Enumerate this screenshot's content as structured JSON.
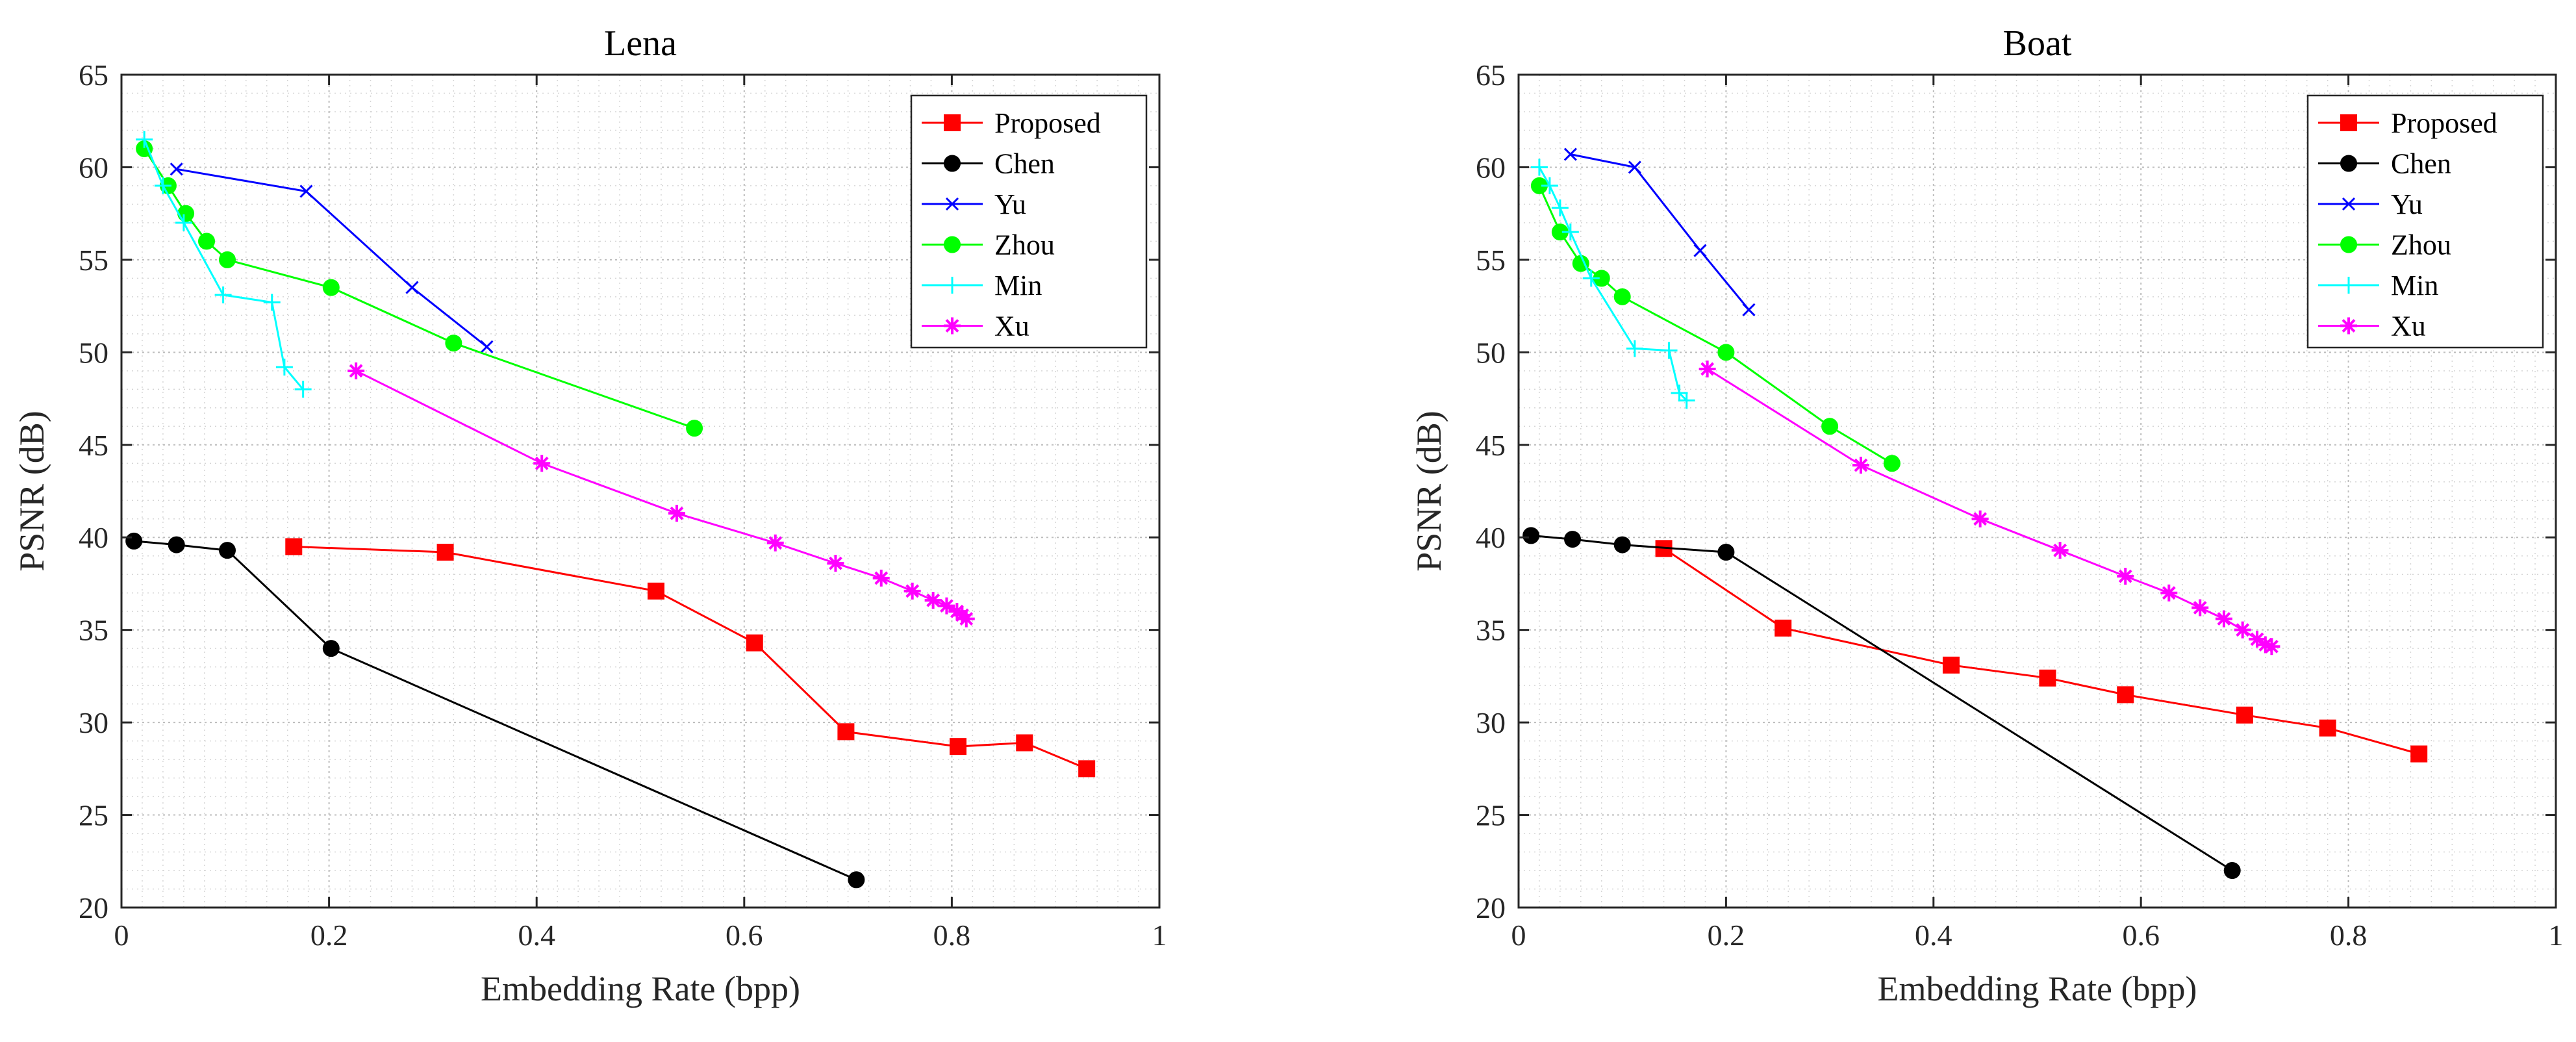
{
  "chart_data": [
    {
      "type": "line",
      "title": "Lena",
      "xlabel": "Embedding Rate (bpp)",
      "ylabel": "PSNR (dB)",
      "xlim": [
        0,
        1
      ],
      "ylim": [
        20,
        65
      ],
      "xticks": [
        "0",
        "0.2",
        "0.4",
        "0.6",
        "0.8",
        "1"
      ],
      "yticks": [
        "20",
        "25",
        "30",
        "35",
        "40",
        "45",
        "50",
        "55",
        "60",
        "65"
      ],
      "grid": true,
      "legend": "top-right",
      "series": [
        {
          "name": "Proposed",
          "color": "#ff0000",
          "marker": "square",
          "x": [
            0.166,
            0.312,
            0.515,
            0.61,
            0.698,
            0.806,
            0.87,
            0.93
          ],
          "y": [
            39.5,
            39.2,
            37.1,
            34.3,
            29.5,
            28.7,
            28.9,
            27.5
          ]
        },
        {
          "name": "Chen",
          "color": "#000000",
          "marker": "circle",
          "x": [
            0.012,
            0.053,
            0.102,
            0.202,
            0.708
          ],
          "y": [
            39.8,
            39.6,
            39.3,
            34.0,
            21.5
          ]
        },
        {
          "name": "Yu",
          "color": "#0000ff",
          "marker": "x",
          "x": [
            0.053,
            0.178,
            0.28,
            0.352
          ],
          "y": [
            59.9,
            58.7,
            53.5,
            50.3
          ]
        },
        {
          "name": "Zhou",
          "color": "#00ff00",
          "marker": "circle",
          "x": [
            0.022,
            0.045,
            0.062,
            0.082,
            0.102,
            0.202,
            0.32,
            0.552
          ],
          "y": [
            61.0,
            59.0,
            57.5,
            56.0,
            55.0,
            53.5,
            50.5,
            45.9
          ]
        },
        {
          "name": "Min",
          "color": "#00ffff",
          "marker": "plus",
          "x": [
            0.022,
            0.04,
            0.06,
            0.098,
            0.145,
            0.157,
            0.175
          ],
          "y": [
            61.5,
            59.0,
            57.0,
            53.1,
            52.7,
            49.2,
            48.0
          ]
        },
        {
          "name": "Xu",
          "color": "#ff00ff",
          "marker": "star",
          "x": [
            0.226,
            0.405,
            0.535,
            0.63,
            0.688,
            0.732,
            0.762,
            0.782,
            0.795,
            0.805,
            0.81,
            0.814
          ],
          "y": [
            49.0,
            44.0,
            41.3,
            39.7,
            38.6,
            37.8,
            37.1,
            36.6,
            36.3,
            36.0,
            35.8,
            35.6
          ]
        }
      ]
    },
    {
      "type": "line",
      "title": "Boat",
      "xlabel": "Embedding Rate (bpp)",
      "ylabel": "PSNR (dB)",
      "xlim": [
        0,
        1
      ],
      "ylim": [
        20,
        65
      ],
      "xticks": [
        "0",
        "0.2",
        "0.4",
        "0.6",
        "0.8",
        "1"
      ],
      "yticks": [
        "20",
        "25",
        "30",
        "35",
        "40",
        "45",
        "50",
        "55",
        "60",
        "65"
      ],
      "grid": true,
      "legend": "top-right",
      "series": [
        {
          "name": "Proposed",
          "color": "#ff0000",
          "marker": "square",
          "x": [
            0.14,
            0.255,
            0.417,
            0.51,
            0.585,
            0.7,
            0.78,
            0.868
          ],
          "y": [
            39.4,
            35.1,
            33.1,
            32.4,
            31.5,
            30.4,
            29.7,
            28.3
          ]
        },
        {
          "name": "Chen",
          "color": "#000000",
          "marker": "circle",
          "x": [
            0.012,
            0.052,
            0.1,
            0.2,
            0.688
          ],
          "y": [
            40.1,
            39.9,
            39.6,
            39.2,
            22.0
          ]
        },
        {
          "name": "Yu",
          "color": "#0000ff",
          "marker": "x",
          "x": [
            0.05,
            0.112,
            0.175,
            0.222
          ],
          "y": [
            60.7,
            60.0,
            55.5,
            52.3
          ]
        },
        {
          "name": "Zhou",
          "color": "#00ff00",
          "marker": "circle",
          "x": [
            0.02,
            0.04,
            0.06,
            0.08,
            0.1,
            0.2,
            0.3,
            0.36
          ],
          "y": [
            59.0,
            56.5,
            54.8,
            54.0,
            53.0,
            50.0,
            46.0,
            44.0
          ]
        },
        {
          "name": "Min",
          "color": "#00ffff",
          "marker": "plus",
          "x": [
            0.02,
            0.03,
            0.04,
            0.05,
            0.07,
            0.112,
            0.145,
            0.155,
            0.162
          ],
          "y": [
            60.0,
            59.0,
            57.8,
            56.5,
            54.0,
            50.2,
            50.1,
            47.8,
            47.4
          ]
        },
        {
          "name": "Xu",
          "color": "#ff00ff",
          "marker": "star",
          "x": [
            0.182,
            0.33,
            0.445,
            0.522,
            0.585,
            0.627,
            0.657,
            0.68,
            0.698,
            0.712,
            0.72,
            0.726
          ],
          "y": [
            49.1,
            43.9,
            41.0,
            39.3,
            37.9,
            37.0,
            36.2,
            35.6,
            35.0,
            34.5,
            34.2,
            34.1
          ]
        }
      ]
    }
  ]
}
